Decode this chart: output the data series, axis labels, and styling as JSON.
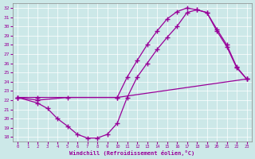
{
  "xlabel": "Windchill (Refroidissement éolien,°C)",
  "xlim": [
    -0.5,
    23.5
  ],
  "ylim": [
    17.5,
    32.5
  ],
  "xticks": [
    0,
    1,
    2,
    3,
    4,
    5,
    6,
    7,
    8,
    9,
    10,
    11,
    12,
    13,
    14,
    15,
    16,
    17,
    18,
    19,
    20,
    21,
    22,
    23
  ],
  "yticks": [
    18,
    19,
    20,
    21,
    22,
    23,
    24,
    25,
    26,
    27,
    28,
    29,
    30,
    31,
    32
  ],
  "bg_color": "#cce8e8",
  "line_color": "#990099",
  "line1_x": [
    0,
    2,
    10,
    23
  ],
  "line1_y": [
    22.3,
    22.3,
    22.3,
    24.3
  ],
  "line2_x": [
    0,
    2,
    3,
    4,
    5,
    6,
    7,
    8,
    9,
    10,
    11,
    12,
    13,
    14,
    15,
    16,
    17,
    18,
    19,
    20,
    21,
    22,
    23
  ],
  "line2_y": [
    22.3,
    21.7,
    21.1,
    20.0,
    19.2,
    18.3,
    17.9,
    17.9,
    18.3,
    19.5,
    22.3,
    24.5,
    26.0,
    27.5,
    28.8,
    30.0,
    31.5,
    31.8,
    31.5,
    29.5,
    27.8,
    25.5,
    24.3
  ],
  "line3_x": [
    0,
    2,
    5,
    10,
    11,
    12,
    13,
    14,
    15,
    16,
    17,
    18,
    19,
    20,
    21,
    22,
    23
  ],
  "line3_y": [
    22.3,
    22.0,
    22.3,
    22.3,
    24.5,
    26.3,
    28.0,
    29.5,
    30.8,
    31.6,
    32.0,
    31.8,
    31.5,
    29.7,
    28.0,
    25.6,
    24.3
  ]
}
